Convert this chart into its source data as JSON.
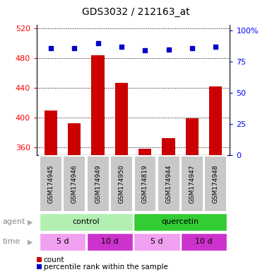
{
  "title": "GDS3032 / 212163_at",
  "samples": [
    "GSM174945",
    "GSM174946",
    "GSM174949",
    "GSM174950",
    "GSM174819",
    "GSM174944",
    "GSM174947",
    "GSM174948"
  ],
  "count_values": [
    410,
    393,
    484,
    447,
    358,
    373,
    399,
    442
  ],
  "percentile_values": [
    86,
    86,
    90,
    87,
    84,
    85,
    86,
    87
  ],
  "ylim_left": [
    350,
    525
  ],
  "yticks_left": [
    360,
    400,
    440,
    480,
    520
  ],
  "ylim_right": [
    0,
    105
  ],
  "yticks_right": [
    0,
    25,
    50,
    75,
    100
  ],
  "yticklabels_right": [
    "0",
    "25",
    "50",
    "75",
    "100%"
  ],
  "bar_color": "#cc0000",
  "dot_color": "#0000cc",
  "agent_colors": [
    "#b2f0b2",
    "#33cc33"
  ],
  "time_color_5d": "#f0a0f0",
  "time_color_10d": "#cc33cc",
  "sample_bg_color": "#c8c8c8",
  "figsize": [
    3.85,
    3.84
  ],
  "dpi": 100
}
